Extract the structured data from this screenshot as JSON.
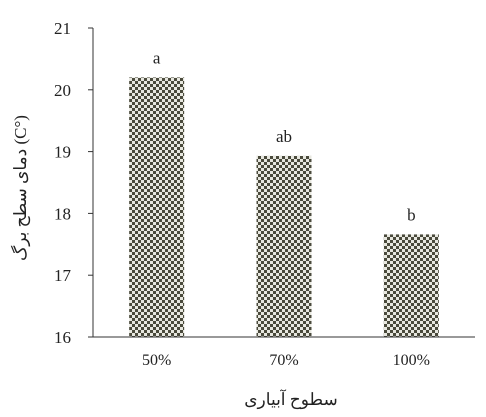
{
  "chart_data": {
    "type": "bar",
    "categories": [
      "50%",
      "70%",
      "100%"
    ],
    "values": [
      20.2,
      18.93,
      17.66
    ],
    "bar_labels": [
      "a",
      "ab",
      "b"
    ],
    "xlabel": "سطوح آبیاری",
    "ylabel": "دمای سطح برگ (C°)",
    "ylim": [
      16,
      21
    ],
    "yticks": [
      16,
      17,
      18,
      19,
      20,
      21
    ],
    "grid": false,
    "legend": "none",
    "bar_pattern": "checkerboard",
    "colors": {
      "bar_dark": "#4a4a3c",
      "bar_light": "#e8e8e0",
      "axis": "#333333",
      "text": "#222222"
    }
  }
}
